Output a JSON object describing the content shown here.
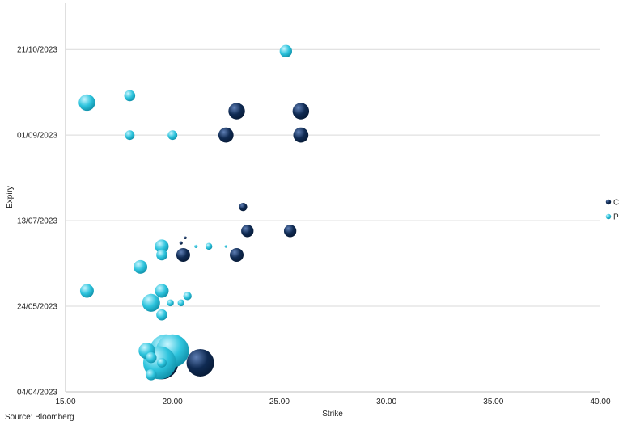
{
  "chart_data": {
    "type": "scatter",
    "subtype": "bubble",
    "title": "",
    "xlabel": "Strike",
    "ylabel": "Expiry",
    "xlim": [
      15,
      40
    ],
    "x_ticks": [
      "15.00",
      "20.00",
      "25.00",
      "30.00",
      "35.00",
      "40.00"
    ],
    "y_ticks": [
      "04/04/2023",
      "24/05/2023",
      "13/07/2023",
      "01/09/2023",
      "21/10/2023"
    ],
    "ylim": [
      "2023-04-04",
      "2023-11-17"
    ],
    "grid": "horizontal",
    "legend_position": "right",
    "series": [
      {
        "name": "C",
        "color": "#0f2a52",
        "points": [
          {
            "strike": 23.0,
            "expiry": "2023-09-15",
            "size": 6
          },
          {
            "strike": 26.0,
            "expiry": "2023-09-15",
            "size": 6
          },
          {
            "strike": 22.5,
            "expiry": "2023-09-01",
            "size": 5.5
          },
          {
            "strike": 26.0,
            "expiry": "2023-09-01",
            "size": 5.5
          },
          {
            "strike": 23.3,
            "expiry": "2023-07-21",
            "size": 3
          },
          {
            "strike": 23.5,
            "expiry": "2023-07-07",
            "size": 4.5
          },
          {
            "strike": 25.5,
            "expiry": "2023-07-07",
            "size": 4.5
          },
          {
            "strike": 20.6,
            "expiry": "2023-07-03",
            "size": 1
          },
          {
            "strike": 20.5,
            "expiry": "2023-06-23",
            "size": 5
          },
          {
            "strike": 23.0,
            "expiry": "2023-06-23",
            "size": 5
          },
          {
            "strike": 20.4,
            "expiry": "2023-06-30",
            "size": 1.2
          },
          {
            "strike": 19.5,
            "expiry": "2023-04-21",
            "size": 12
          },
          {
            "strike": 21.3,
            "expiry": "2023-04-21",
            "size": 10
          }
        ]
      },
      {
        "name": "P",
        "color": "#2ec4dd",
        "points": [
          {
            "strike": 25.3,
            "expiry": "2023-10-20",
            "size": 4.5
          },
          {
            "strike": 18.0,
            "expiry": "2023-09-24",
            "size": 4
          },
          {
            "strike": 16.0,
            "expiry": "2023-09-20",
            "size": 6
          },
          {
            "strike": 18.0,
            "expiry": "2023-09-01",
            "size": 3.5
          },
          {
            "strike": 20.0,
            "expiry": "2023-09-01",
            "size": 3.5
          },
          {
            "strike": 19.5,
            "expiry": "2023-06-28",
            "size": 5
          },
          {
            "strike": 21.7,
            "expiry": "2023-06-28",
            "size": 2.5
          },
          {
            "strike": 21.1,
            "expiry": "2023-06-28",
            "size": 1.2
          },
          {
            "strike": 22.5,
            "expiry": "2023-06-28",
            "size": 1
          },
          {
            "strike": 19.5,
            "expiry": "2023-06-23",
            "size": 4
          },
          {
            "strike": 18.5,
            "expiry": "2023-06-16",
            "size": 5
          },
          {
            "strike": 16.0,
            "expiry": "2023-06-02",
            "size": 5
          },
          {
            "strike": 19.5,
            "expiry": "2023-06-02",
            "size": 5
          },
          {
            "strike": 20.7,
            "expiry": "2023-05-30",
            "size": 3
          },
          {
            "strike": 19.0,
            "expiry": "2023-05-26",
            "size": 6.5
          },
          {
            "strike": 19.9,
            "expiry": "2023-05-26",
            "size": 2.5
          },
          {
            "strike": 20.4,
            "expiry": "2023-05-26",
            "size": 2.5
          },
          {
            "strike": 19.5,
            "expiry": "2023-05-19",
            "size": 4
          },
          {
            "strike": 18.8,
            "expiry": "2023-04-28",
            "size": 6
          },
          {
            "strike": 19.7,
            "expiry": "2023-04-28",
            "size": 12
          },
          {
            "strike": 20.0,
            "expiry": "2023-04-28",
            "size": 12
          },
          {
            "strike": 19.0,
            "expiry": "2023-04-24",
            "size": 4
          },
          {
            "strike": 19.4,
            "expiry": "2023-04-21",
            "size": 12
          },
          {
            "strike": 19.5,
            "expiry": "2023-04-21",
            "size": 3.5
          },
          {
            "strike": 19.0,
            "expiry": "2023-04-14",
            "size": 4
          }
        ]
      }
    ]
  },
  "footer": {
    "source": "Source: Bloomberg"
  }
}
